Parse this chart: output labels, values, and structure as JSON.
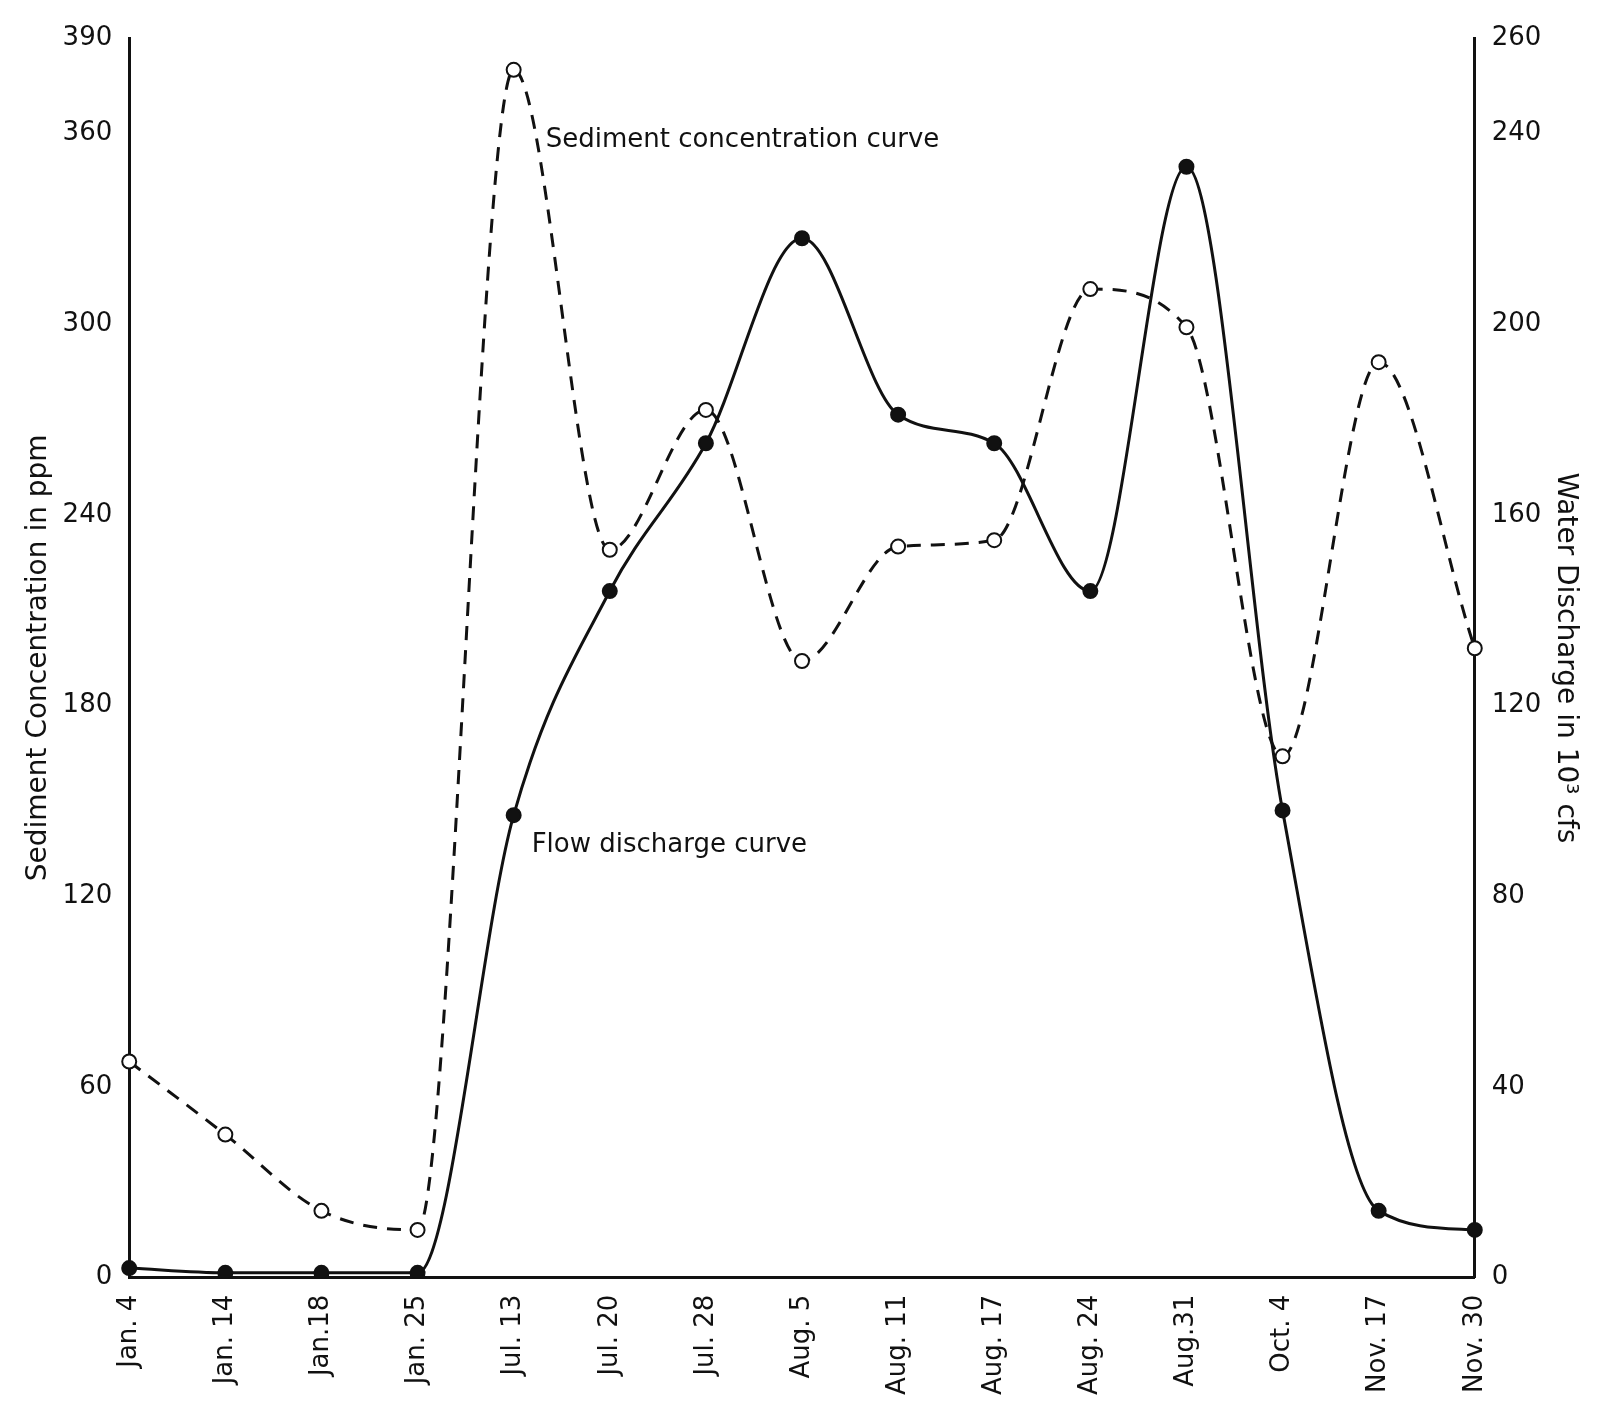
{
  "chart_data": {
    "type": "line",
    "ylabel": "Sediment Concentration in ppm",
    "y2label": "Water Discharge in 10³ cfs",
    "categories": [
      "Jan. 4",
      "Jan. 14",
      "Jan.18",
      "Jan. 25",
      "Jul. 13",
      "Jul. 20",
      "Jul. 28",
      "Aug. 5",
      "Aug. 11",
      "Aug. 17",
      "Aug. 24",
      "Aug.31",
      "Oct. 4",
      "Nov. 17",
      "Nov. 30"
    ],
    "series": [
      {
        "name": "Sediment concentration curve",
        "color": "#111111",
        "line_style": "dashed",
        "marker": "circle",
        "values": [
          68,
          45,
          21,
          15,
          380,
          229,
          273,
          194,
          230,
          232,
          311,
          299,
          164,
          288,
          198
        ]
      },
      {
        "name": "Flow discharge curve",
        "color": "#111111",
        "line_style": "solid",
        "marker": "circle",
        "axis": "y2",
        "values": [
          2,
          1,
          1,
          1,
          97,
          144,
          175,
          218,
          181,
          175,
          144,
          233,
          98,
          14,
          10
        ]
      }
    ],
    "ylim": [
      0,
      390
    ],
    "yticks": [
      0,
      60,
      120,
      180,
      240,
      300,
      360,
      390
    ],
    "y2lim": [
      0,
      260
    ],
    "y2ticks": [
      0,
      40,
      80,
      120,
      160,
      200,
      240,
      260
    ],
    "grid": false,
    "legend": false
  }
}
